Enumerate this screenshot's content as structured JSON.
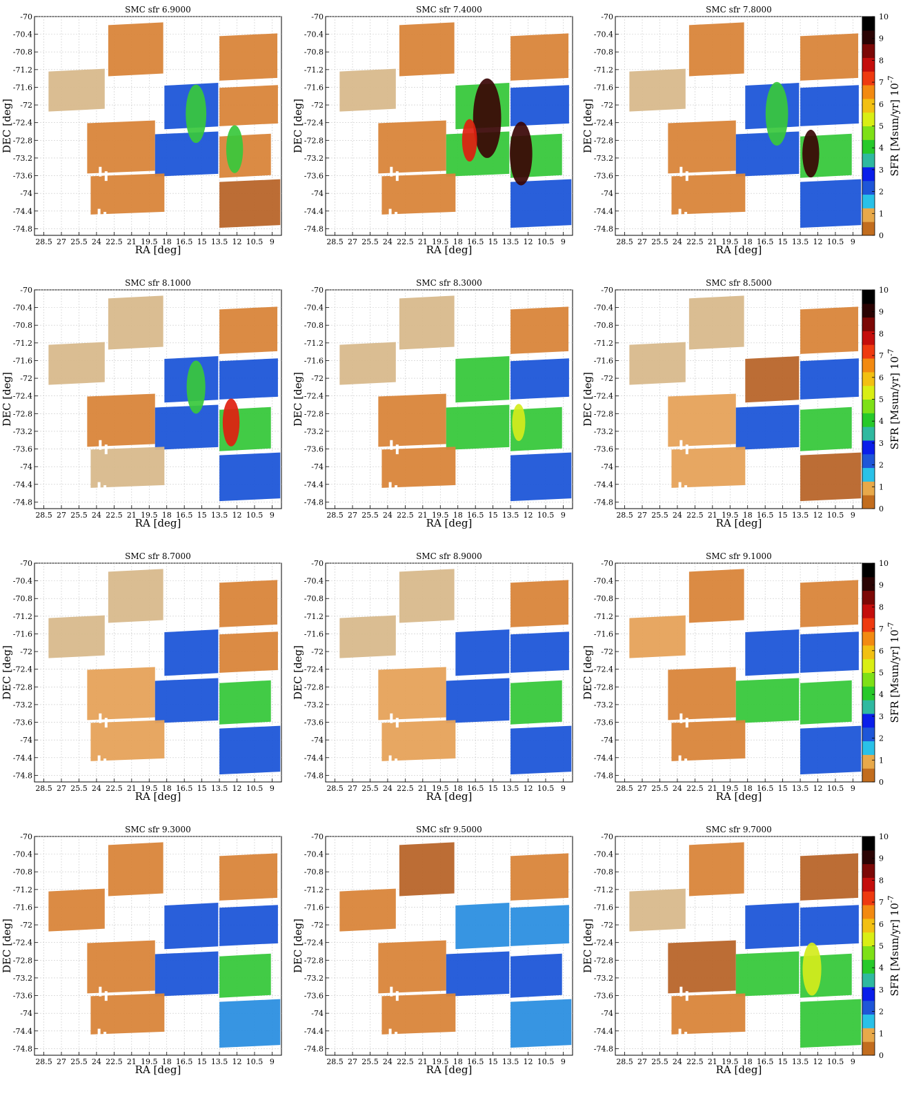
{
  "chart_data": {
    "type": "heatmap",
    "grid": true,
    "layout": "4 rows x 3 columns of panels, colorbar right of each row",
    "xlabel": "RA [deg]",
    "ylabel": "DEC [deg]",
    "xticks": [
      "28.5",
      "27",
      "25.5",
      "24",
      "22.5",
      "21",
      "19.5",
      "18",
      "16.5",
      "15",
      "13.5",
      "12",
      "10.5",
      "9"
    ],
    "yticks": [
      "-70",
      "-70.4",
      "-70.8",
      "-71.2",
      "-71.6",
      "-72",
      "-72.4",
      "-72.8",
      "-73.2",
      "-73.6",
      "-74",
      "-74.4",
      "-74.8"
    ],
    "xlim": [
      29.3,
      8.2
    ],
    "ylim": [
      -74.95,
      -70
    ],
    "colorbar": {
      "label": "SFR [Msun/yr] 10",
      "label_exponent": "-7",
      "ticks": [
        "0",
        "1",
        "2",
        "3",
        "4",
        "5",
        "6",
        "7",
        "8",
        "9",
        "10"
      ],
      "range": [
        0,
        10
      ],
      "colors": [
        "#c26d1e",
        "#e8a94a",
        "#29c1e8",
        "#1e56d8",
        "#0a1eea",
        "#2fb9a0",
        "#27c92a",
        "#7ee017",
        "#d9ee14",
        "#f2c012",
        "#f28a11",
        "#ee3a10",
        "#c40e0c",
        "#7c0806",
        "#2a0303",
        "#000000"
      ]
    },
    "tile_colors": {
      "pale": "#d8b98c",
      "light_orange": "#e6a25a",
      "orange": "#d9853a",
      "dark_orange": "#b8652a",
      "blue": "#1e56d8",
      "cyan_blue": "#2c8fe0",
      "green": "#38c83c",
      "yellow": "#d4ec1c",
      "red": "#e02010",
      "dark": "#3a0505"
    },
    "panels": [
      {
        "title": "SMC sfr 6.9000",
        "tiles": {
          "t1": "orange",
          "t2": "orange",
          "t3": "pale",
          "t4": "blue",
          "t5": "orange",
          "t6": "orange",
          "t7": "blue",
          "t8": "orange",
          "t9": "dark_orange",
          "t10": "orange"
        },
        "blobs": [
          {
            "ra": 15.5,
            "dec": -72.2,
            "r": 0.55,
            "c": "green"
          },
          {
            "ra": 12.2,
            "dec": -73.0,
            "r": 0.45,
            "c": "green"
          }
        ]
      },
      {
        "title": "SMC sfr 7.4000",
        "tiles": {
          "t1": "orange",
          "t2": "orange",
          "t3": "pale",
          "t4": "green",
          "t5": "blue",
          "t6": "orange",
          "t7": "green",
          "t8": "green",
          "t9": "blue",
          "t10": "orange"
        },
        "blobs": [
          {
            "ra": 15.5,
            "dec": -72.3,
            "r": 0.75,
            "c": "dark"
          },
          {
            "ra": 12.6,
            "dec": -73.1,
            "r": 0.6,
            "c": "dark"
          },
          {
            "ra": 17.0,
            "dec": -72.8,
            "r": 0.4,
            "c": "red"
          }
        ]
      },
      {
        "title": "SMC sfr 7.8000",
        "tiles": {
          "t1": "orange",
          "t2": "orange",
          "t3": "pale",
          "t4": "blue",
          "t5": "blue",
          "t6": "orange",
          "t7": "blue",
          "t8": "green",
          "t9": "blue",
          "t10": "orange"
        },
        "blobs": [
          {
            "ra": 15.5,
            "dec": -72.2,
            "r": 0.6,
            "c": "green"
          },
          {
            "ra": 12.6,
            "dec": -73.1,
            "r": 0.45,
            "c": "dark"
          }
        ]
      },
      {
        "title": "SMC sfr 8.1000",
        "tiles": {
          "t1": "pale",
          "t2": "orange",
          "t3": "pale",
          "t4": "blue",
          "t5": "blue",
          "t6": "orange",
          "t7": "blue",
          "t8": "green",
          "t9": "blue",
          "t10": "pale"
        },
        "blobs": [
          {
            "ra": 15.5,
            "dec": -72.2,
            "r": 0.5,
            "c": "green"
          },
          {
            "ra": 12.5,
            "dec": -73.0,
            "r": 0.45,
            "c": "red"
          }
        ]
      },
      {
        "title": "SMC sfr 8.3000",
        "tiles": {
          "t1": "pale",
          "t2": "orange",
          "t3": "pale",
          "t4": "green",
          "t5": "blue",
          "t6": "orange",
          "t7": "green",
          "t8": "green",
          "t9": "blue",
          "t10": "orange"
        },
        "blobs": [
          {
            "ra": 12.8,
            "dec": -73.0,
            "r": 0.35,
            "c": "yellow"
          }
        ]
      },
      {
        "title": "SMC sfr 8.5000",
        "tiles": {
          "t1": "pale",
          "t2": "orange",
          "t3": "pale",
          "t4": "dark_orange",
          "t5": "blue",
          "t6": "light_orange",
          "t7": "blue",
          "t8": "green",
          "t9": "dark_orange",
          "t10": "light_orange"
        },
        "blobs": []
      },
      {
        "title": "SMC sfr 8.7000",
        "tiles": {
          "t1": "pale",
          "t2": "orange",
          "t3": "pale",
          "t4": "blue",
          "t5": "orange",
          "t6": "light_orange",
          "t7": "blue",
          "t8": "green",
          "t9": "blue",
          "t10": "light_orange"
        },
        "blobs": []
      },
      {
        "title": "SMC sfr 8.9000",
        "tiles": {
          "t1": "pale",
          "t2": "orange",
          "t3": "pale",
          "t4": "blue",
          "t5": "blue",
          "t6": "light_orange",
          "t7": "blue",
          "t8": "green",
          "t9": "blue",
          "t10": "light_orange"
        },
        "blobs": []
      },
      {
        "title": "SMC sfr 9.1000",
        "tiles": {
          "t1": "orange",
          "t2": "orange",
          "t3": "light_orange",
          "t4": "blue",
          "t5": "blue",
          "t6": "orange",
          "t7": "green",
          "t8": "green",
          "t9": "blue",
          "t10": "orange"
        },
        "blobs": []
      },
      {
        "title": "SMC sfr 9.3000",
        "tiles": {
          "t1": "orange",
          "t2": "orange",
          "t3": "orange",
          "t4": "blue",
          "t5": "blue",
          "t6": "orange",
          "t7": "blue",
          "t8": "green",
          "t9": "cyan_blue",
          "t10": "orange"
        },
        "blobs": []
      },
      {
        "title": "SMC sfr 9.5000",
        "tiles": {
          "t1": "dark_orange",
          "t2": "orange",
          "t3": "orange",
          "t4": "cyan_blue",
          "t5": "cyan_blue",
          "t6": "orange",
          "t7": "blue",
          "t8": "blue",
          "t9": "cyan_blue",
          "t10": "orange"
        },
        "blobs": []
      },
      {
        "title": "SMC sfr 9.7000",
        "tiles": {
          "t1": "orange",
          "t2": "dark_orange",
          "t3": "pale",
          "t4": "blue",
          "t5": "blue",
          "t6": "dark_orange",
          "t7": "green",
          "t8": "green",
          "t9": "green",
          "t10": "orange"
        },
        "blobs": [
          {
            "ra": 12.5,
            "dec": -73.0,
            "r": 0.5,
            "c": "yellow"
          }
        ]
      }
    ]
  }
}
